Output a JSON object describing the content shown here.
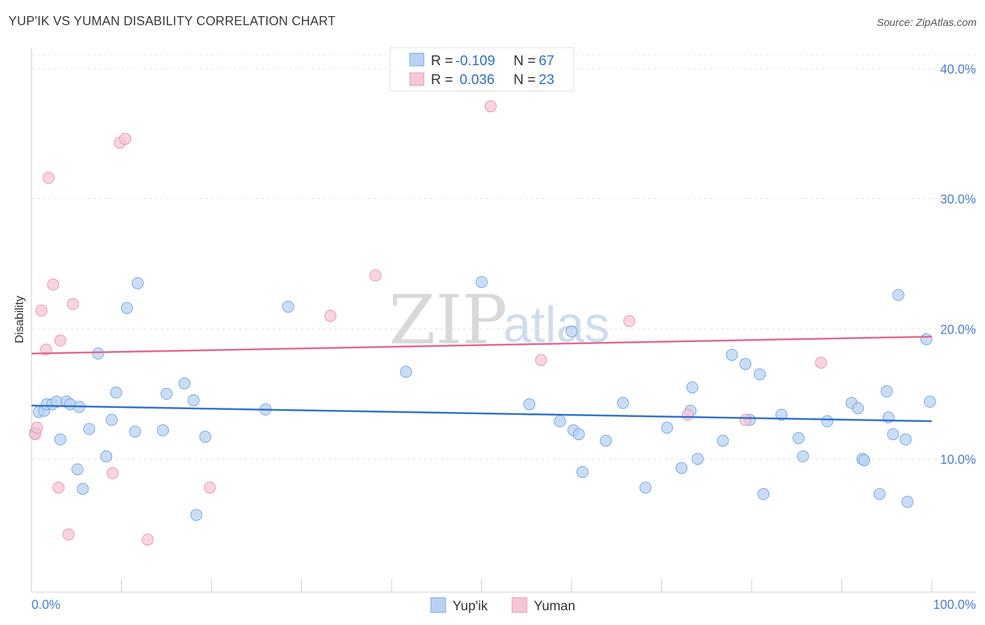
{
  "header": {
    "title": "YUP'IK VS YUMAN DISABILITY CORRELATION CHART",
    "source": "Source: ZipAtlas.com"
  },
  "colors": {
    "blue": "#6fa8e8",
    "blue_fill": "#b9d2f3",
    "blue_line": "#2f6fcf",
    "pink": "#ee93ad",
    "pink_fill": "#f7c6d5",
    "pink_line": "#e36592",
    "axis_label": "#4a7fd4"
  },
  "legend": {
    "rows": [
      {
        "r_label": "R =",
        "r_value": "-0.109",
        "n_label": "N =",
        "n_value": "67"
      },
      {
        "r_label": "R =",
        "r_value": "0.036",
        "n_label": "N =",
        "n_value": "23"
      }
    ]
  },
  "watermark": {
    "zip": "ZIP",
    "atlas": "atlas"
  },
  "chart_data": {
    "type": "scatter",
    "title": "YUP'IK VS YUMAN DISABILITY CORRELATION CHART",
    "xlabel": "",
    "ylabel": "Disability",
    "xlim": [
      0,
      100
    ],
    "ylim": [
      0,
      42
    ],
    "x_tick_labels": [
      "0.0%",
      "100.0%"
    ],
    "y_ticks": [
      10,
      20,
      30,
      40
    ],
    "y_tick_labels": [
      "10.0%",
      "20.0%",
      "30.0%",
      "40.0%"
    ],
    "legend_position": "bottom-center",
    "series": [
      {
        "name": "Yup'ik",
        "color": "#6fa8e8",
        "trend": {
          "x": [
            0,
            100
          ],
          "y": [
            14.1,
            12.9
          ]
        },
        "points": [
          {
            "x": 0.4,
            "y": 12.0
          },
          {
            "x": 0.8,
            "y": 13.6
          },
          {
            "x": 1.4,
            "y": 13.7
          },
          {
            "x": 1.7,
            "y": 14.2
          },
          {
            "x": 2.3,
            "y": 14.2
          },
          {
            "x": 2.8,
            "y": 14.4
          },
          {
            "x": 3.2,
            "y": 11.5
          },
          {
            "x": 3.9,
            "y": 14.4
          },
          {
            "x": 4.3,
            "y": 14.2
          },
          {
            "x": 5.1,
            "y": 9.2
          },
          {
            "x": 5.3,
            "y": 14.0
          },
          {
            "x": 5.7,
            "y": 7.7
          },
          {
            "x": 6.4,
            "y": 12.3
          },
          {
            "x": 7.4,
            "y": 18.1
          },
          {
            "x": 8.3,
            "y": 10.2
          },
          {
            "x": 8.9,
            "y": 13.0
          },
          {
            "x": 9.4,
            "y": 15.1
          },
          {
            "x": 10.6,
            "y": 21.6
          },
          {
            "x": 11.5,
            "y": 12.1
          },
          {
            "x": 11.8,
            "y": 23.5
          },
          {
            "x": 14.6,
            "y": 12.2
          },
          {
            "x": 15.0,
            "y": 15.0
          },
          {
            "x": 17.0,
            "y": 15.8
          },
          {
            "x": 18.0,
            "y": 14.5
          },
          {
            "x": 18.3,
            "y": 5.7
          },
          {
            "x": 19.3,
            "y": 11.7
          },
          {
            "x": 26.0,
            "y": 13.8
          },
          {
            "x": 28.5,
            "y": 21.7
          },
          {
            "x": 41.6,
            "y": 16.7
          },
          {
            "x": 50.0,
            "y": 23.6
          },
          {
            "x": 55.3,
            "y": 14.2
          },
          {
            "x": 58.7,
            "y": 12.9
          },
          {
            "x": 60.0,
            "y": 19.8
          },
          {
            "x": 60.2,
            "y": 12.2
          },
          {
            "x": 60.8,
            "y": 11.9
          },
          {
            "x": 61.2,
            "y": 9.0
          },
          {
            "x": 63.8,
            "y": 11.4
          },
          {
            "x": 65.7,
            "y": 14.3
          },
          {
            "x": 68.2,
            "y": 7.8
          },
          {
            "x": 70.6,
            "y": 12.4
          },
          {
            "x": 72.2,
            "y": 9.3
          },
          {
            "x": 73.2,
            "y": 13.7
          },
          {
            "x": 73.4,
            "y": 15.5
          },
          {
            "x": 74.0,
            "y": 10.0
          },
          {
            "x": 76.8,
            "y": 11.4
          },
          {
            "x": 77.8,
            "y": 18.0
          },
          {
            "x": 79.3,
            "y": 17.3
          },
          {
            "x": 79.8,
            "y": 13.0
          },
          {
            "x": 80.9,
            "y": 16.5
          },
          {
            "x": 81.3,
            "y": 7.3
          },
          {
            "x": 83.3,
            "y": 13.4
          },
          {
            "x": 85.2,
            "y": 11.6
          },
          {
            "x": 85.7,
            "y": 10.2
          },
          {
            "x": 88.4,
            "y": 12.9
          },
          {
            "x": 91.1,
            "y": 14.3
          },
          {
            "x": 91.8,
            "y": 13.9
          },
          {
            "x": 92.3,
            "y": 10.0
          },
          {
            "x": 92.5,
            "y": 9.9
          },
          {
            "x": 94.2,
            "y": 7.3
          },
          {
            "x": 95.0,
            "y": 15.2
          },
          {
            "x": 95.2,
            "y": 13.2
          },
          {
            "x": 95.7,
            "y": 11.9
          },
          {
            "x": 96.3,
            "y": 22.6
          },
          {
            "x": 97.1,
            "y": 11.5
          },
          {
            "x": 97.3,
            "y": 6.7
          },
          {
            "x": 99.4,
            "y": 19.2
          },
          {
            "x": 99.8,
            "y": 14.4
          }
        ]
      },
      {
        "name": "Yuman",
        "color": "#ee93ad",
        "trend": {
          "x": [
            0,
            100
          ],
          "y": [
            18.1,
            19.4
          ]
        },
        "points": [
          {
            "x": 0.4,
            "y": 11.9
          },
          {
            "x": 0.6,
            "y": 12.4
          },
          {
            "x": 1.1,
            "y": 21.4
          },
          {
            "x": 1.6,
            "y": 18.4
          },
          {
            "x": 1.9,
            "y": 31.6
          },
          {
            "x": 2.4,
            "y": 23.4
          },
          {
            "x": 3.0,
            "y": 7.8
          },
          {
            "x": 3.2,
            "y": 19.1
          },
          {
            "x": 4.1,
            "y": 4.2
          },
          {
            "x": 4.6,
            "y": 21.9
          },
          {
            "x": 9.0,
            "y": 8.9
          },
          {
            "x": 9.8,
            "y": 34.3
          },
          {
            "x": 10.4,
            "y": 34.6
          },
          {
            "x": 12.9,
            "y": 3.8
          },
          {
            "x": 19.8,
            "y": 7.8
          },
          {
            "x": 33.2,
            "y": 21.0
          },
          {
            "x": 38.2,
            "y": 24.1
          },
          {
            "x": 51.0,
            "y": 37.1
          },
          {
            "x": 56.6,
            "y": 17.6
          },
          {
            "x": 66.4,
            "y": 20.6
          },
          {
            "x": 72.9,
            "y": 13.4
          },
          {
            "x": 79.3,
            "y": 13.0
          },
          {
            "x": 87.7,
            "y": 17.4
          }
        ]
      }
    ]
  }
}
